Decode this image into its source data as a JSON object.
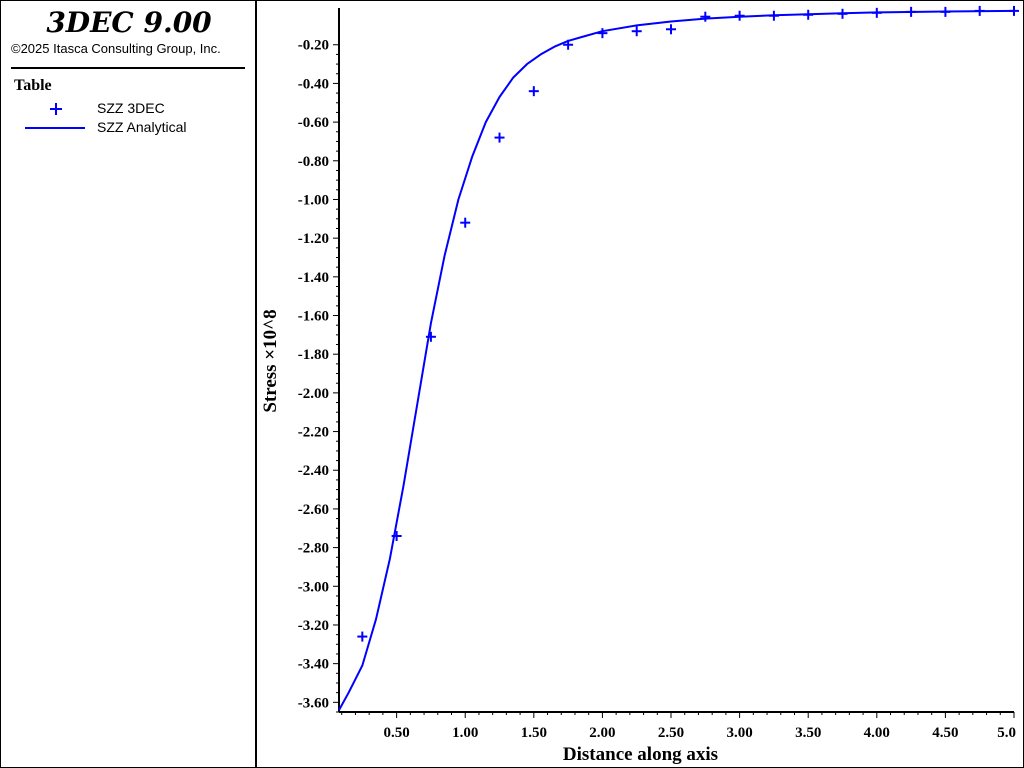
{
  "app": {
    "title": "3DEC 9.00",
    "copyright": "©2025 Itasca Consulting Group, Inc."
  },
  "legend": {
    "title": "Table",
    "items": [
      {
        "label": "SZZ 3DEC",
        "marker": "plus"
      },
      {
        "label": "SZZ Analytical",
        "marker": "line"
      }
    ]
  },
  "colors": {
    "series": "#0000ff",
    "axis": "#000000",
    "background": "#ffffff"
  },
  "chart_data": {
    "type": "line",
    "xlabel": "Distance along axis",
    "ylabel": "Stress ×10^8",
    "xlim": [
      0.08,
      5.0
    ],
    "ylim": [
      -3.65,
      -0.01
    ],
    "x_ticks": [
      "0.50",
      "1.00",
      "1.50",
      "2.00",
      "2.50",
      "3.00",
      "3.50",
      "4.00",
      "4.50",
      "5.0"
    ],
    "y_ticks": [
      "-0.20",
      "-0.40",
      "-0.60",
      "-0.80",
      "-1.00",
      "-1.20",
      "-1.40",
      "-1.60",
      "-1.80",
      "-2.00",
      "-2.20",
      "-2.40",
      "-2.60",
      "-2.80",
      "-3.00",
      "-3.20",
      "-3.40",
      "-3.60"
    ],
    "grid": false,
    "legend_position": "side-panel",
    "series": [
      {
        "name": "SZZ 3DEC",
        "style": "markers",
        "x": [
          0.25,
          0.5,
          0.75,
          1.0,
          1.25,
          1.5,
          1.75,
          2.0,
          2.25,
          2.5,
          2.75,
          3.0,
          3.25,
          3.5,
          3.75,
          4.0,
          4.25,
          4.5,
          4.75,
          5.0
        ],
        "y": [
          -3.26,
          -2.74,
          -1.71,
          -1.12,
          -0.68,
          -0.44,
          -0.2,
          -0.14,
          -0.13,
          -0.12,
          -0.055,
          -0.05,
          -0.05,
          -0.045,
          -0.04,
          -0.035,
          -0.03,
          -0.03,
          -0.025,
          -0.025
        ]
      },
      {
        "name": "SZZ Analytical",
        "style": "line",
        "x": [
          0.08,
          0.15,
          0.25,
          0.35,
          0.45,
          0.55,
          0.65,
          0.75,
          0.85,
          0.95,
          1.05,
          1.15,
          1.25,
          1.35,
          1.45,
          1.55,
          1.65,
          1.75,
          1.85,
          2.0,
          2.25,
          2.5,
          2.75,
          3.0,
          3.25,
          3.5,
          3.75,
          4.0,
          4.5,
          5.0
        ],
        "y": [
          -3.64,
          -3.55,
          -3.41,
          -3.17,
          -2.86,
          -2.48,
          -2.06,
          -1.64,
          -1.29,
          -1.0,
          -0.78,
          -0.6,
          -0.47,
          -0.37,
          -0.3,
          -0.25,
          -0.21,
          -0.18,
          -0.16,
          -0.13,
          -0.1,
          -0.08,
          -0.065,
          -0.055,
          -0.048,
          -0.042,
          -0.037,
          -0.033,
          -0.028,
          -0.025
        ]
      }
    ]
  }
}
